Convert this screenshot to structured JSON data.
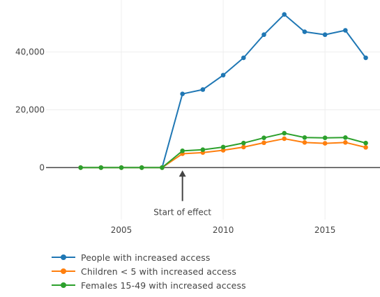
{
  "chart_data": {
    "type": "line",
    "x": [
      2003,
      2004,
      2005,
      2006,
      2007,
      2008,
      2009,
      2010,
      2011,
      2012,
      2013,
      2014,
      2015,
      2016,
      2017
    ],
    "series": [
      {
        "name": "People with increased access",
        "color": "#1f77b4",
        "values": [
          0,
          0,
          0,
          0,
          0,
          25500,
          27000,
          32000,
          38000,
          46000,
          53000,
          47000,
          46000,
          47500,
          38000
        ]
      },
      {
        "name": "Children < 5 with increased access",
        "color": "#ff7f0e",
        "values": [
          0,
          0,
          0,
          0,
          0,
          4800,
          5200,
          6000,
          7100,
          8600,
          10000,
          8700,
          8400,
          8700,
          7000
        ]
      },
      {
        "name": "Females 15-49 with increased access",
        "color": "#2ca02c",
        "values": [
          0,
          0,
          0,
          0,
          0,
          5800,
          6200,
          7100,
          8500,
          10300,
          11900,
          10400,
          10300,
          10400,
          8500
        ]
      }
    ],
    "xticks": [
      2005,
      2010,
      2015
    ],
    "xtick_labels": [
      "2005",
      "2010",
      "2015"
    ],
    "yticks": [
      0,
      20000,
      40000
    ],
    "ytick_labels": [
      "0",
      "20,000",
      "40,000"
    ],
    "xlim": [
      2001.3,
      2017.7
    ],
    "ylim": [
      -18000,
      58000
    ],
    "grid": true,
    "legend_position": "bottom-left",
    "annotations": [
      {
        "text": "Start of effect",
        "x": 2008,
        "y": 0,
        "arrow": true
      }
    ]
  }
}
